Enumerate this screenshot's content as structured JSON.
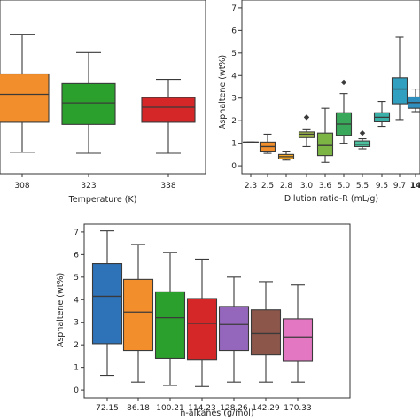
{
  "chart_data": [
    {
      "type": "box",
      "xlabel": "Temperature (K)",
      "ylabel": "",
      "ylim": [
        0,
        7
      ],
      "categories": [
        "308",
        "323",
        "338"
      ],
      "colors": [
        "#f28e2b",
        "#2ca02c",
        "#d62728"
      ],
      "boxes": [
        {
          "min": 0.65,
          "q1": 2.05,
          "median": 3.35,
          "q3": 4.3,
          "max": 6.15
        },
        {
          "min": 0.6,
          "q1": 1.95,
          "median": 2.95,
          "q3": 3.85,
          "max": 5.3
        },
        {
          "min": 0.6,
          "q1": 2.05,
          "median": 2.75,
          "q3": 3.2,
          "max": 4.05
        }
      ],
      "outliers": []
    },
    {
      "type": "box",
      "xlabel": "Dilution ratio-R (mL/g)",
      "ylabel": "Asphaltene (wt%)",
      "ylim": [
        0,
        7
      ],
      "yticks": [
        0,
        1,
        2,
        3,
        4,
        5,
        6,
        7
      ],
      "categories": [
        "2.3",
        "2.5",
        "2.8",
        "3.0",
        "3.6",
        "5.0",
        "5.5",
        "9.5",
        "9.7",
        "14"
      ],
      "colors": [
        "#9c9cd6",
        "#f28e2b",
        "#f5a623",
        "#a6c24a",
        "#7db545",
        "#3aa85a",
        "#4cc1a0",
        "#3bb0a8",
        "#31a0c0",
        "#2f8fbf"
      ],
      "boxes": [
        {
          "min": 1.05,
          "q1": 1.05,
          "median": 1.05,
          "q3": 1.05,
          "max": 1.05
        },
        {
          "min": 0.55,
          "q1": 0.65,
          "median": 0.85,
          "q3": 1.05,
          "max": 1.4
        },
        {
          "min": 0.25,
          "q1": 0.3,
          "median": 0.4,
          "q3": 0.5,
          "max": 0.65
        },
        {
          "min": 0.85,
          "q1": 1.25,
          "median": 1.4,
          "q3": 1.5,
          "max": 1.6
        },
        {
          "min": 0.15,
          "q1": 0.45,
          "median": 0.9,
          "q3": 1.45,
          "max": 2.55
        },
        {
          "min": 1.0,
          "q1": 1.35,
          "median": 1.85,
          "q3": 2.35,
          "max": 3.2
        },
        {
          "min": 0.75,
          "q1": 0.85,
          "median": 0.95,
          "q3": 1.1,
          "max": 1.2
        },
        {
          "min": 1.75,
          "q1": 1.95,
          "median": 2.15,
          "q3": 2.35,
          "max": 2.85
        },
        {
          "min": 2.05,
          "q1": 2.75,
          "median": 3.4,
          "q3": 3.9,
          "max": 5.7
        },
        {
          "min": 2.4,
          "q1": 2.55,
          "median": 2.8,
          "q3": 3.05,
          "max": 3.4
        }
      ],
      "outliers": [
        {
          "category": "3.0",
          "value": 2.15
        },
        {
          "category": "5.0",
          "value": 3.7
        },
        {
          "category": "5.5",
          "value": 1.45
        }
      ]
    },
    {
      "type": "box",
      "xlabel": "n-alkanes (g/mol)",
      "ylabel": "Asphaltene (wt%)",
      "ylim": [
        0,
        7.35
      ],
      "yticks": [
        0,
        1,
        2,
        3,
        4,
        5,
        6,
        7
      ],
      "categories": [
        "72.15",
        "86.18",
        "100.21",
        "114.23",
        "128.26",
        "142.29",
        "170.33"
      ],
      "colors": [
        "#2e72b8",
        "#f28e2b",
        "#2ca02c",
        "#d62728",
        "#9467bd",
        "#8c564b",
        "#e377c2"
      ],
      "boxes": [
        {
          "min": 0.65,
          "q1": 2.05,
          "median": 4.15,
          "q3": 5.6,
          "max": 7.05
        },
        {
          "min": 0.35,
          "q1": 1.75,
          "median": 3.45,
          "q3": 4.9,
          "max": 6.45
        },
        {
          "min": 0.2,
          "q1": 1.4,
          "median": 3.2,
          "q3": 4.35,
          "max": 6.1
        },
        {
          "min": 0.15,
          "q1": 1.35,
          "median": 2.95,
          "q3": 4.05,
          "max": 5.8
        },
        {
          "min": 0.35,
          "q1": 1.75,
          "median": 2.9,
          "q3": 3.7,
          "max": 5.0
        },
        {
          "min": 0.35,
          "q1": 1.55,
          "median": 2.5,
          "q3": 3.55,
          "max": 4.8
        },
        {
          "min": 0.35,
          "q1": 1.3,
          "median": 2.35,
          "q3": 3.15,
          "max": 4.65
        }
      ],
      "outliers": []
    }
  ]
}
